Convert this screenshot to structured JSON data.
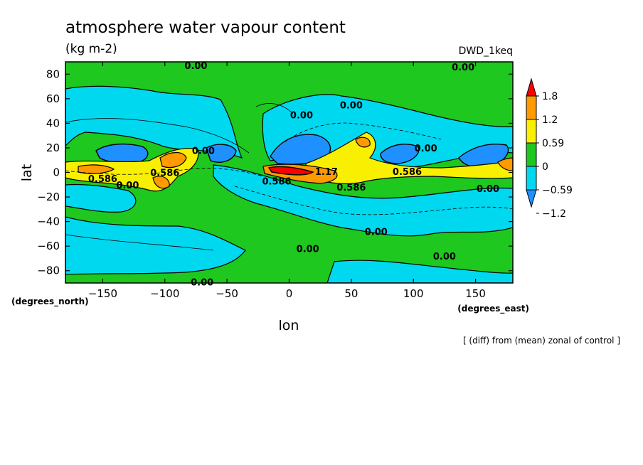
{
  "chart_data": {
    "type": "heatmap",
    "title": "atmosphere water vapour content",
    "subtitle": "(kg m-2)",
    "model_label": "DWD_1keq",
    "footnote": "[ (diff) from (mean) zonal of control ]",
    "xlabel": "lon",
    "ylabel": "lat",
    "x_units": "(degrees_east)",
    "y_units": "(degrees_north)",
    "xlim": [
      -180,
      180
    ],
    "ylim": [
      -90,
      90
    ],
    "x_ticks": [
      -150,
      -100,
      -50,
      0,
      50,
      100,
      150
    ],
    "y_ticks": [
      -80,
      -60,
      -40,
      -20,
      0,
      20,
      40,
      60,
      80
    ],
    "colorbar": {
      "levels": [
        -1.2,
        -0.59,
        0,
        0.59,
        1.2,
        1.8
      ],
      "labels": [
        "1.8",
        "1.2",
        "0.59",
        "0",
        "−0.59",
        "−1.2"
      ],
      "colors": [
        "#1e90ff",
        "#00d8f0",
        "#1ec81e",
        "#f8f000",
        "#ff9b00",
        "#ff0000"
      ],
      "under_color": "#1e90ff",
      "over_color": "#ff0000"
    },
    "contour_labels": [
      {
        "text": "0.00",
        "lon": -75,
        "lat": 87
      },
      {
        "text": "0.00",
        "lon": 140,
        "lat": 86
      },
      {
        "text": "0.00",
        "lon": 50,
        "lat": 55
      },
      {
        "text": "0.00",
        "lon": 10,
        "lat": 47
      },
      {
        "text": "0.00",
        "lon": 110,
        "lat": 20
      },
      {
        "text": "0.00",
        "lon": -69,
        "lat": 18
      },
      {
        "text": "0.586",
        "lon": -100,
        "lat": 0
      },
      {
        "text": "0.586",
        "lon": -150,
        "lat": -5
      },
      {
        "text": "0.00",
        "lon": -130,
        "lat": -10
      },
      {
        "text": "0.586",
        "lon": 95,
        "lat": 1
      },
      {
        "text": "1.17",
        "lon": 30,
        "lat": 1
      },
      {
        "text": "0.586",
        "lon": -10,
        "lat": -7
      },
      {
        "text": "0.586",
        "lon": 50,
        "lat": -12
      },
      {
        "text": "0.00",
        "lon": 160,
        "lat": -13
      },
      {
        "text": "0.00",
        "lon": 70,
        "lat": -48
      },
      {
        "text": "0.00",
        "lon": 15,
        "lat": -62
      },
      {
        "text": "0.00",
        "lon": 125,
        "lat": -68
      },
      {
        "text": "0.00",
        "lon": -70,
        "lat": -89
      }
    ]
  }
}
